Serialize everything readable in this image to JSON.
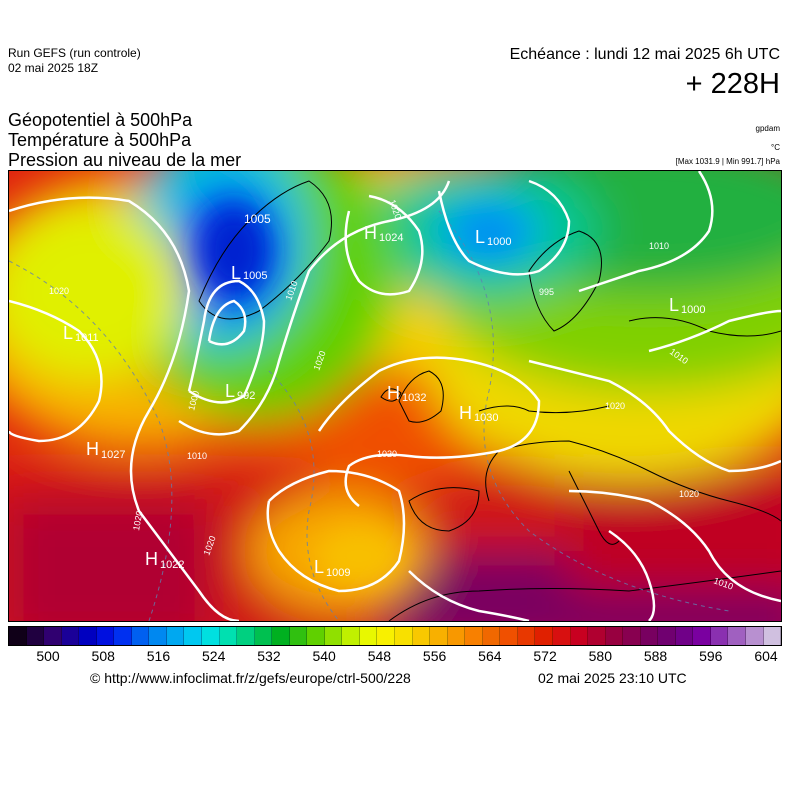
{
  "header": {
    "run_name": "Run GEFS (run controle)",
    "run_date": "02 mai 2025 18Z",
    "valid_time": "Echéance : lundi 12 mai 2025 6h UTC",
    "lead_time": "+ 228H"
  },
  "fields": [
    "Géopotentiel à 500hPa",
    "Température à 500hPa",
    "Pression au niveau de la mer"
  ],
  "units": {
    "geopotential": "gpdam",
    "temperature": "°C",
    "pressure_range": "[Max 1031.9 | Min 991.7] hPa"
  },
  "pressure_centers": [
    {
      "type": "L",
      "value": "1005",
      "color": "#ffffff"
    },
    {
      "type": "L",
      "value": "1005",
      "color": "#ffffff"
    },
    {
      "type": "H",
      "value": "1024",
      "color": "#ffffff"
    },
    {
      "type": "L",
      "value": "1000",
      "color": "#ffffff"
    },
    {
      "type": "L",
      "value": "1000",
      "color": "#ffffff"
    },
    {
      "type": "L",
      "value": "1011",
      "color": "#ffffff"
    },
    {
      "type": "L",
      "value": "992",
      "color": "#ffffff"
    },
    {
      "type": "H",
      "value": "1032",
      "color": "#ffffff"
    },
    {
      "type": "H",
      "value": "1030",
      "color": "#ffffff"
    },
    {
      "type": "H",
      "value": "1027",
      "color": "#ffffff"
    },
    {
      "type": "H",
      "value": "1022",
      "color": "#ffffff"
    },
    {
      "type": "L",
      "value": "1009",
      "color": "#ffffff"
    }
  ],
  "isobar_labels": [
    "1020",
    "1020",
    "1010",
    "1000",
    "1010",
    "1020",
    "1020",
    "1020",
    "1020",
    "1020",
    "1010",
    "1010",
    "1020",
    "995",
    "1010"
  ],
  "colorbar": {
    "tick_labels": [
      "500",
      "508",
      "516",
      "524",
      "532",
      "540",
      "548",
      "556",
      "564",
      "572",
      "580",
      "588",
      "596",
      "604"
    ],
    "colors": [
      "#100018",
      "#200040",
      "#300070",
      "#1a0098",
      "#0000c0",
      "#0010e0",
      "#0030f0",
      "#0060f0",
      "#0088f0",
      "#00a8f0",
      "#00c8f0",
      "#00e0e0",
      "#00e0b0",
      "#00d080",
      "#00c050",
      "#00b020",
      "#30c010",
      "#60d000",
      "#90e000",
      "#c0f000",
      "#e8f800",
      "#f8f000",
      "#f8e000",
      "#f8c800",
      "#f8b000",
      "#f89800",
      "#f88000",
      "#f06800",
      "#f05000",
      "#e83800",
      "#e02000",
      "#d81010",
      "#c80020",
      "#b00030",
      "#980040",
      "#880050",
      "#780060",
      "#700070",
      "#700088",
      "#7a00a0",
      "#8a30b0",
      "#a060c0",
      "#b890d0",
      "#d0c0e0"
    ]
  },
  "footer": {
    "copyright": "© http://www.infoclimat.fr/z/gefs/europe/ctrl-500/228",
    "created": "02 mai 2025 23:10 UTC"
  }
}
